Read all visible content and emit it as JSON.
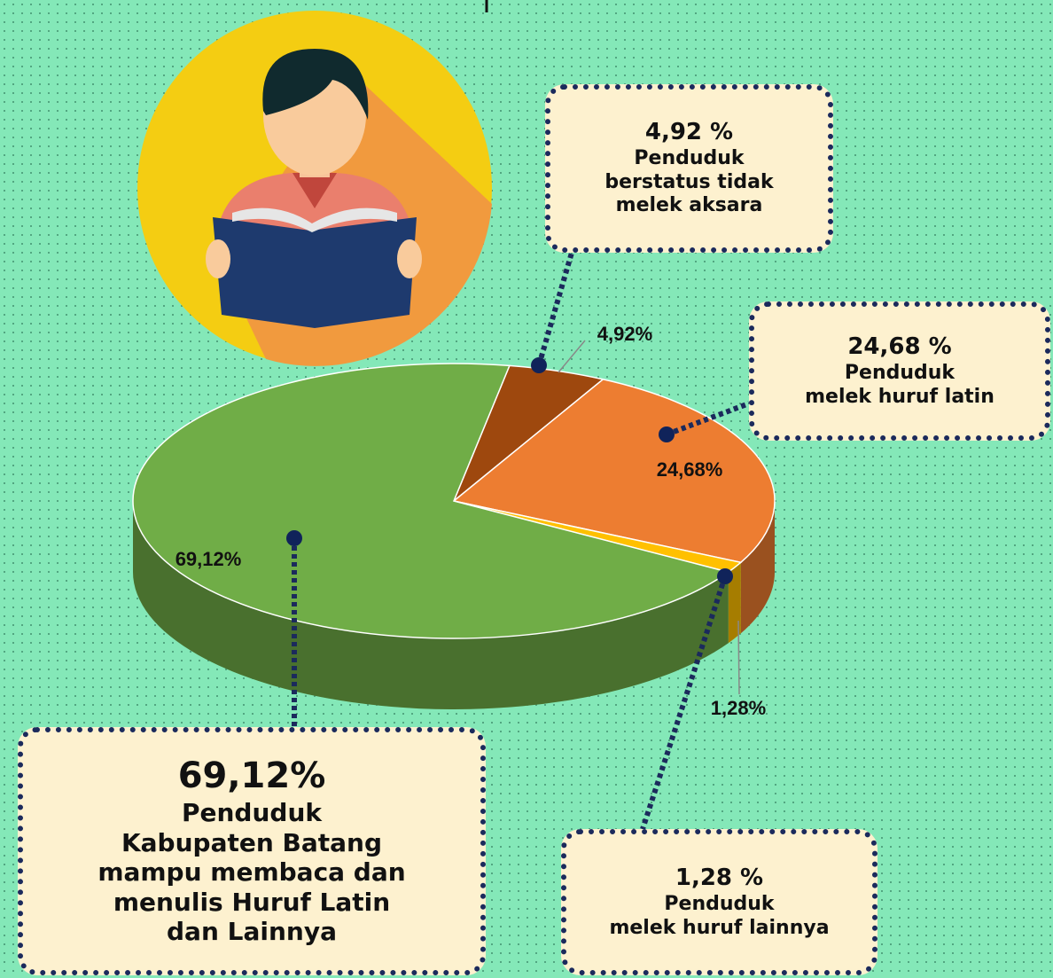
{
  "chart_data": {
    "type": "pie",
    "values": [
      4.92,
      24.68,
      1.28,
      69.12
    ],
    "value_labels": [
      "4,92%",
      "24,68%",
      "1,28%",
      "69,12%"
    ],
    "colors": [
      "#9e480e",
      "#ed7d31",
      "#ffc000",
      "#70ad47"
    ],
    "annotations": [
      {
        "label": "4,92 %",
        "lines": [
          "Penduduk",
          "berstatus tidak",
          "melek aksara"
        ]
      },
      {
        "label": "24,68 %",
        "lines": [
          "Penduduk",
          "melek huruf latin"
        ]
      },
      {
        "label": "1,28 %",
        "lines": [
          "Penduduk",
          "melek huruf lainnya"
        ]
      },
      {
        "label": "69,12%",
        "lines": [
          "Penduduk",
          "Kabupaten Batang",
          "mampu membaca dan",
          "menulis Huruf Latin",
          "dan Lainnya"
        ]
      }
    ]
  }
}
